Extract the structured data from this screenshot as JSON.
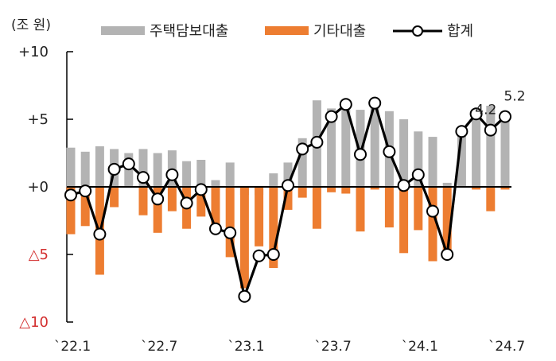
{
  "chart_data": {
    "type": "bar",
    "unit_label": "(조 원)",
    "legend": [
      {
        "name": "주택담보대출",
        "kind": "bar",
        "color": "#b3b3b3"
      },
      {
        "name": "기타대출",
        "kind": "bar",
        "color": "#ed7d31"
      },
      {
        "name": "합계",
        "kind": "line",
        "color": "#000000"
      }
    ],
    "y_ticks": [
      {
        "value": 10,
        "label": "+10",
        "color": "#222222"
      },
      {
        "value": 5,
        "label": "+5",
        "color": "#222222"
      },
      {
        "value": 0,
        "label": "+0",
        "color": "#222222"
      },
      {
        "value": -5,
        "label": "△5",
        "color": "#d32f2f"
      },
      {
        "value": -10,
        "label": "△10",
        "color": "#d32f2f"
      }
    ],
    "ylim": [
      -10,
      10
    ],
    "x_tick_labels": [
      {
        "index": 0,
        "label": "`22.1"
      },
      {
        "index": 6,
        "label": "`22.7"
      },
      {
        "index": 12,
        "label": "`23.1"
      },
      {
        "index": 18,
        "label": "`23.7"
      },
      {
        "index": 24,
        "label": "`24.1"
      },
      {
        "index": 30,
        "label": "`24.7"
      }
    ],
    "categories": [
      "22.1",
      "22.2",
      "22.3",
      "22.4",
      "22.5",
      "22.6",
      "22.7",
      "22.8",
      "22.9",
      "22.10",
      "22.11",
      "22.12",
      "23.1",
      "23.2",
      "23.3",
      "23.4",
      "23.5",
      "23.6",
      "23.7",
      "23.8",
      "23.9",
      "23.10",
      "23.11",
      "23.12",
      "24.1",
      "24.2",
      "24.3",
      "24.4",
      "24.5",
      "24.6",
      "24.7"
    ],
    "series": [
      {
        "name": "주택담보대출",
        "type": "bar",
        "color": "#b3b3b3",
        "values": [
          2.9,
          2.6,
          3.0,
          2.8,
          2.5,
          2.8,
          2.5,
          2.7,
          1.9,
          2.0,
          0.5,
          1.8,
          -0.6,
          -0.6,
          1.0,
          1.8,
          3.6,
          6.4,
          5.8,
          6.0,
          5.7,
          6.4,
          5.6,
          5.0,
          4.1,
          3.7,
          0.3,
          4.0,
          5.2,
          6.0,
          5.6
        ]
      },
      {
        "name": "기타대출",
        "type": "bar",
        "color": "#ed7d31",
        "values": [
          -3.5,
          -2.9,
          -6.5,
          -1.5,
          0.0,
          -2.1,
          -3.4,
          -1.8,
          -3.1,
          -2.2,
          -3.3,
          -5.2,
          -7.5,
          -4.4,
          -6.0,
          -1.7,
          -0.8,
          -3.1,
          -0.4,
          -0.5,
          -3.3,
          -0.2,
          -3.0,
          -4.9,
          -3.2,
          -5.5,
          -5.3,
          0.0,
          -0.2,
          -1.8,
          -0.2
        ]
      },
      {
        "name": "합계",
        "type": "line",
        "color": "#000000",
        "values": [
          -0.6,
          -0.3,
          -3.5,
          1.3,
          1.7,
          0.7,
          -0.9,
          0.9,
          -1.2,
          -0.2,
          -3.1,
          -3.4,
          -8.1,
          -5.1,
          -5.0,
          0.1,
          2.8,
          3.3,
          5.2,
          6.1,
          2.4,
          6.2,
          2.6,
          0.1,
          0.9,
          -1.8,
          -5.0,
          4.1,
          5.4,
          4.2,
          5.2
        ]
      }
    ],
    "data_labels": [
      {
        "index": 29,
        "text": "4.2"
      },
      {
        "index": 30,
        "text": "5.2"
      }
    ]
  }
}
